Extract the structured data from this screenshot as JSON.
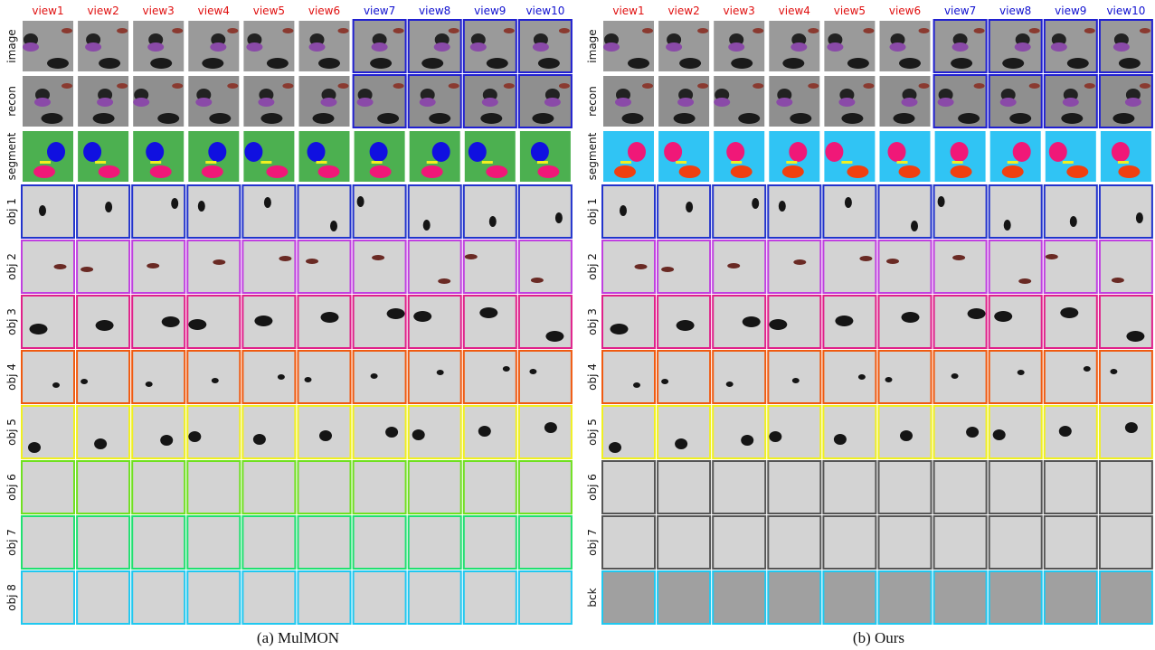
{
  "panels": [
    {
      "caption": "(a) MulMON",
      "views": [
        {
          "label": "view1",
          "color": "#e01010",
          "frame": "#ffffff"
        },
        {
          "label": "view2",
          "color": "#e01010",
          "frame": "#ffffff"
        },
        {
          "label": "view3",
          "color": "#e01010",
          "frame": "#ffffff"
        },
        {
          "label": "view4",
          "color": "#e01010",
          "frame": "#ffffff"
        },
        {
          "label": "view5",
          "color": "#e01010",
          "frame": "#ffffff"
        },
        {
          "label": "view6",
          "color": "#e01010",
          "frame": "#ffffff"
        },
        {
          "label": "view7",
          "color": "#1010d0",
          "frame": "#2020d0"
        },
        {
          "label": "view8",
          "color": "#1010d0",
          "frame": "#2020d0"
        },
        {
          "label": "view9",
          "color": "#1010d0",
          "frame": "#2020d0"
        },
        {
          "label": "view10",
          "color": "#1010d0",
          "frame": "#2020d0"
        }
      ],
      "rows": [
        {
          "label": "image",
          "kind": "scene",
          "fill": "#9a9a9a"
        },
        {
          "label": "recon",
          "kind": "scene",
          "fill": "#8f8f8f"
        },
        {
          "label": "segment",
          "kind": "segment",
          "fill": "#4cb050",
          "border": "#ffffff"
        },
        {
          "label": "obj 1",
          "kind": "object",
          "fill": "#d3d3d3",
          "border": "#2233cc"
        },
        {
          "label": "obj 2",
          "kind": "object",
          "fill": "#d3d3d3",
          "border": "#c040e0"
        },
        {
          "label": "obj 3",
          "kind": "object",
          "fill": "#d3d3d3",
          "border": "#e0208a"
        },
        {
          "label": "obj 4",
          "kind": "object",
          "fill": "#d3d3d3",
          "border": "#f05a10"
        },
        {
          "label": "obj 5",
          "kind": "object",
          "fill": "#d3d3d3",
          "border": "#f0f020"
        },
        {
          "label": "obj 6",
          "kind": "object",
          "fill": "#d3d3d3",
          "border": "#70e020"
        },
        {
          "label": "obj 7",
          "kind": "object",
          "fill": "#d3d3d3",
          "border": "#20e070"
        },
        {
          "label": "obj 8",
          "kind": "object",
          "fill": "#d3d3d3",
          "border": "#20c8f0"
        }
      ]
    },
    {
      "caption": "(b) Ours",
      "views": [
        {
          "label": "view1",
          "color": "#e01010",
          "frame": "#ffffff"
        },
        {
          "label": "view2",
          "color": "#e01010",
          "frame": "#ffffff"
        },
        {
          "label": "view3",
          "color": "#e01010",
          "frame": "#ffffff"
        },
        {
          "label": "view4",
          "color": "#e01010",
          "frame": "#ffffff"
        },
        {
          "label": "view5",
          "color": "#e01010",
          "frame": "#ffffff"
        },
        {
          "label": "view6",
          "color": "#e01010",
          "frame": "#ffffff"
        },
        {
          "label": "view7",
          "color": "#1010d0",
          "frame": "#2020d0"
        },
        {
          "label": "view8",
          "color": "#1010d0",
          "frame": "#2020d0"
        },
        {
          "label": "view9",
          "color": "#1010d0",
          "frame": "#2020d0"
        },
        {
          "label": "view10",
          "color": "#1010d0",
          "frame": "#2020d0"
        }
      ],
      "rows": [
        {
          "label": "image",
          "kind": "scene",
          "fill": "#9a9a9a"
        },
        {
          "label": "recon",
          "kind": "scene",
          "fill": "#8f8f8f"
        },
        {
          "label": "segment",
          "kind": "segment",
          "fill": "#30c4f4",
          "border": "#ffffff"
        },
        {
          "label": "obj 1",
          "kind": "object",
          "fill": "#d3d3d3",
          "border": "#2233cc"
        },
        {
          "label": "obj 2",
          "kind": "object",
          "fill": "#d3d3d3",
          "border": "#c040e0"
        },
        {
          "label": "obj 3",
          "kind": "object",
          "fill": "#d3d3d3",
          "border": "#e0208a"
        },
        {
          "label": "obj 4",
          "kind": "object",
          "fill": "#d3d3d3",
          "border": "#f05a10"
        },
        {
          "label": "obj 5",
          "kind": "object",
          "fill": "#d3d3d3",
          "border": "#f0f020"
        },
        {
          "label": "obj 6",
          "kind": "object",
          "fill": "#d3d3d3",
          "border": "#555555"
        },
        {
          "label": "obj 7",
          "kind": "object",
          "fill": "#d3d3d3",
          "border": "#555555"
        },
        {
          "label": "bck",
          "kind": "scene",
          "fill": "#a0a0a0",
          "border": "#20c8f0"
        }
      ]
    }
  ]
}
